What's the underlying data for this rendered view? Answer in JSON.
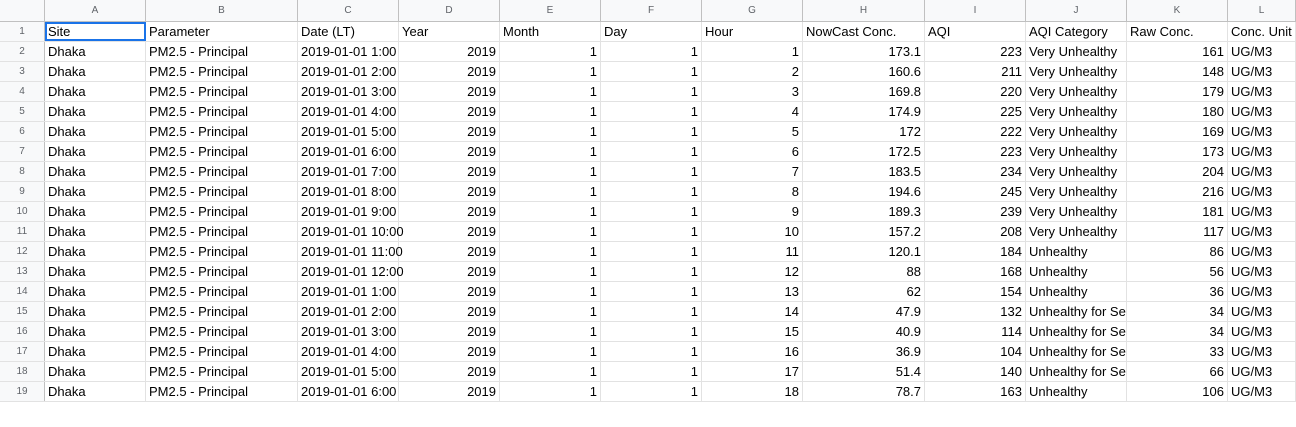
{
  "columns": [
    "A",
    "B",
    "C",
    "D",
    "E",
    "F",
    "G",
    "H",
    "I",
    "J",
    "K",
    "L"
  ],
  "row_numbers": [
    "1",
    "2",
    "3",
    "4",
    "5",
    "6",
    "7",
    "8",
    "9",
    "10",
    "11",
    "12",
    "13",
    "14",
    "15",
    "16",
    "17",
    "18",
    "19"
  ],
  "header": [
    "Site",
    "Parameter",
    "Date (LT)",
    "Year",
    "Month",
    "Day",
    "Hour",
    "NowCast Conc.",
    "AQI",
    "AQI Category",
    "Raw Conc.",
    "Conc. Unit"
  ],
  "rows": [
    [
      "Dhaka",
      "PM2.5 - Principal",
      "2019-01-01 1:00",
      "2019",
      "1",
      "1",
      "1",
      "173.1",
      "223",
      "Very Unhealthy",
      "161",
      "UG/M3"
    ],
    [
      "Dhaka",
      "PM2.5 - Principal",
      "2019-01-01 2:00",
      "2019",
      "1",
      "1",
      "2",
      "160.6",
      "211",
      "Very Unhealthy",
      "148",
      "UG/M3"
    ],
    [
      "Dhaka",
      "PM2.5 - Principal",
      "2019-01-01 3:00",
      "2019",
      "1",
      "1",
      "3",
      "169.8",
      "220",
      "Very Unhealthy",
      "179",
      "UG/M3"
    ],
    [
      "Dhaka",
      "PM2.5 - Principal",
      "2019-01-01 4:00",
      "2019",
      "1",
      "1",
      "4",
      "174.9",
      "225",
      "Very Unhealthy",
      "180",
      "UG/M3"
    ],
    [
      "Dhaka",
      "PM2.5 - Principal",
      "2019-01-01 5:00",
      "2019",
      "1",
      "1",
      "5",
      "172",
      "222",
      "Very Unhealthy",
      "169",
      "UG/M3"
    ],
    [
      "Dhaka",
      "PM2.5 - Principal",
      "2019-01-01 6:00",
      "2019",
      "1",
      "1",
      "6",
      "172.5",
      "223",
      "Very Unhealthy",
      "173",
      "UG/M3"
    ],
    [
      "Dhaka",
      "PM2.5 - Principal",
      "2019-01-01 7:00",
      "2019",
      "1",
      "1",
      "7",
      "183.5",
      "234",
      "Very Unhealthy",
      "204",
      "UG/M3"
    ],
    [
      "Dhaka",
      "PM2.5 - Principal",
      "2019-01-01 8:00",
      "2019",
      "1",
      "1",
      "8",
      "194.6",
      "245",
      "Very Unhealthy",
      "216",
      "UG/M3"
    ],
    [
      "Dhaka",
      "PM2.5 - Principal",
      "2019-01-01 9:00",
      "2019",
      "1",
      "1",
      "9",
      "189.3",
      "239",
      "Very Unhealthy",
      "181",
      "UG/M3"
    ],
    [
      "Dhaka",
      "PM2.5 - Principal",
      "2019-01-01 10:00",
      "2019",
      "1",
      "1",
      "10",
      "157.2",
      "208",
      "Very Unhealthy",
      "117",
      "UG/M3"
    ],
    [
      "Dhaka",
      "PM2.5 - Principal",
      "2019-01-01 11:00",
      "2019",
      "1",
      "1",
      "11",
      "120.1",
      "184",
      "Unhealthy",
      "86",
      "UG/M3"
    ],
    [
      "Dhaka",
      "PM2.5 - Principal",
      "2019-01-01 12:00",
      "2019",
      "1",
      "1",
      "12",
      "88",
      "168",
      "Unhealthy",
      "56",
      "UG/M3"
    ],
    [
      "Dhaka",
      "PM2.5 - Principal",
      "2019-01-01 1:00",
      "2019",
      "1",
      "1",
      "13",
      "62",
      "154",
      "Unhealthy",
      "36",
      "UG/M3"
    ],
    [
      "Dhaka",
      "PM2.5 - Principal",
      "2019-01-01 2:00",
      "2019",
      "1",
      "1",
      "14",
      "47.9",
      "132",
      "Unhealthy for Se",
      "34",
      "UG/M3"
    ],
    [
      "Dhaka",
      "PM2.5 - Principal",
      "2019-01-01 3:00",
      "2019",
      "1",
      "1",
      "15",
      "40.9",
      "114",
      "Unhealthy for Se",
      "34",
      "UG/M3"
    ],
    [
      "Dhaka",
      "PM2.5 - Principal",
      "2019-01-01 4:00",
      "2019",
      "1",
      "1",
      "16",
      "36.9",
      "104",
      "Unhealthy for Se",
      "33",
      "UG/M3"
    ],
    [
      "Dhaka",
      "PM2.5 - Principal",
      "2019-01-01 5:00",
      "2019",
      "1",
      "1",
      "17",
      "51.4",
      "140",
      "Unhealthy for Se",
      "66",
      "UG/M3"
    ],
    [
      "Dhaka",
      "PM2.5 - Principal",
      "2019-01-01 6:00",
      "2019",
      "1",
      "1",
      "18",
      "78.7",
      "163",
      "Unhealthy",
      "106",
      "UG/M3"
    ]
  ],
  "selected_cell": "A1",
  "colors": {
    "selection": "#1a73e8",
    "header_bg": "#f8f9fa",
    "grid": "#e2e2e2"
  }
}
